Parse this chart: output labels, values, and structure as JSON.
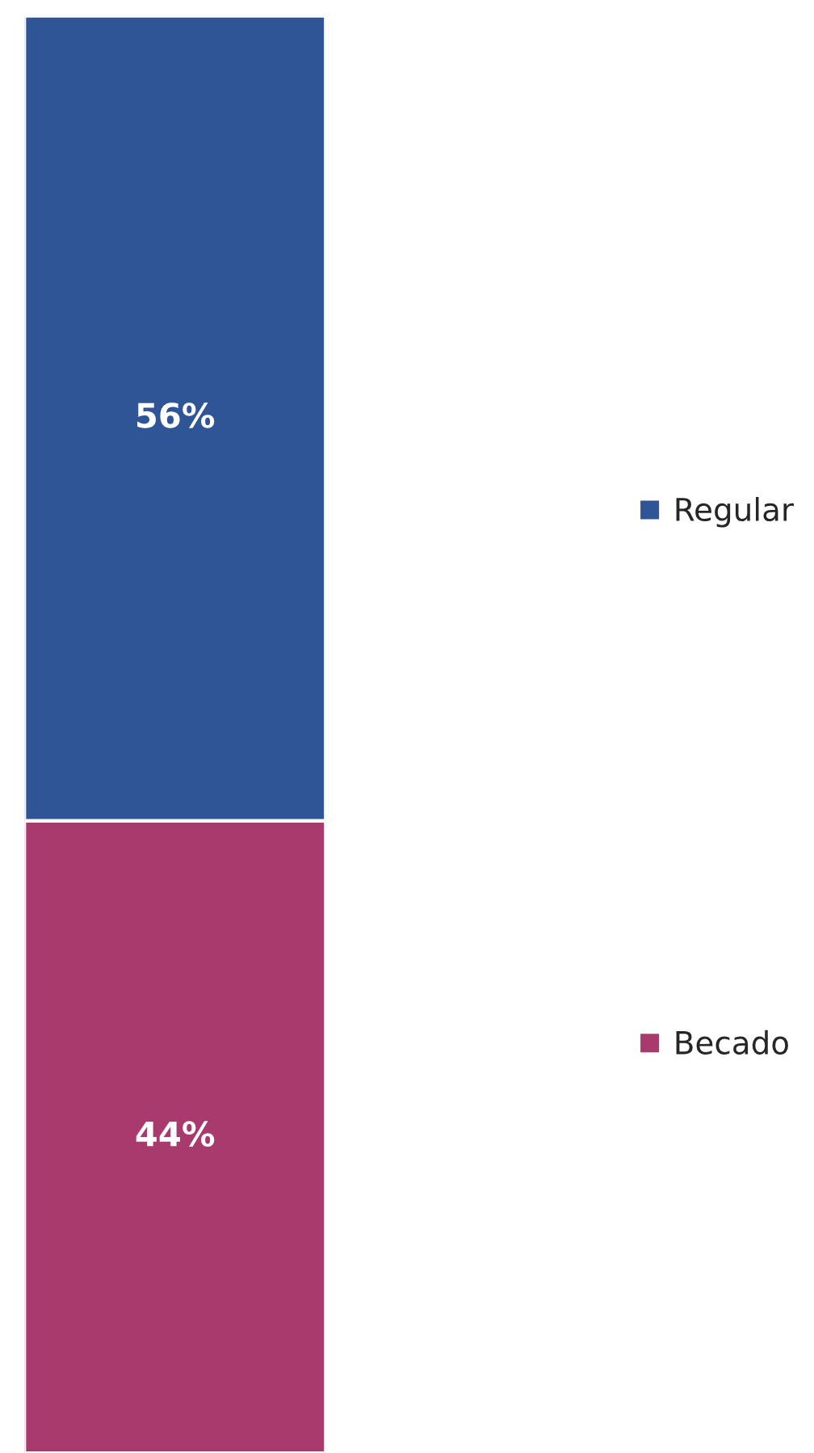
{
  "chart_data": {
    "type": "bar",
    "stacked": true,
    "categories": [
      null
    ],
    "series": [
      {
        "name": "Becado",
        "color": "#a93a6e",
        "values": [
          44
        ],
        "value_labels": [
          "44%"
        ]
      },
      {
        "name": "Regular",
        "color": "#2f5597",
        "values": [
          56
        ],
        "value_labels": [
          "56%"
        ]
      }
    ],
    "legend": "right"
  }
}
